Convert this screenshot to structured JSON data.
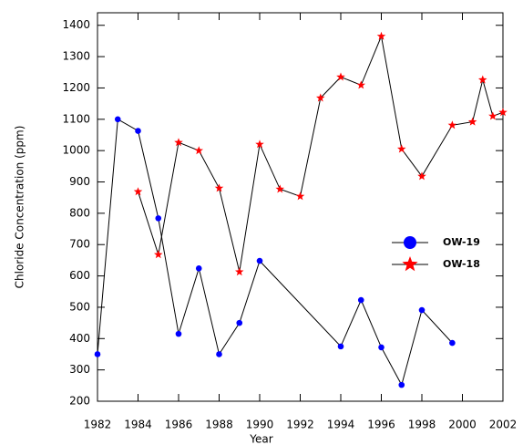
{
  "chart_data": {
    "type": "line",
    "x_label": "Year",
    "y_label": "Chloride  Concentration  (ppm)",
    "xlim": [
      1982,
      2002
    ],
    "xticks": [
      1982,
      1984,
      1986,
      1988,
      1990,
      1992,
      1994,
      1996,
      1998,
      2000,
      2002
    ],
    "ylim": [
      200,
      1440
    ],
    "yticks": [
      200,
      300,
      400,
      500,
      600,
      700,
      800,
      900,
      1000,
      1100,
      1200,
      1300,
      1400
    ],
    "legend_position": "right",
    "series": [
      {
        "name": "OW-19",
        "color": "#0000ff",
        "marker": "circle",
        "x": [
          1982,
          1983,
          1984,
          1985,
          1986,
          1987,
          1988,
          1989,
          1990,
          1994,
          1995,
          1996,
          1997,
          1998,
          1999.5
        ],
        "values": [
          350,
          1100,
          1063,
          784,
          415,
          624,
          350,
          450,
          648,
          375,
          523,
          372,
          252,
          491,
          386
        ]
      },
      {
        "name": "OW-18",
        "color": "#ff0000",
        "marker": "star",
        "x": [
          1984,
          1985,
          1986,
          1987,
          1988,
          1989,
          1990,
          1991,
          1992,
          1993,
          1994,
          1995,
          1996,
          1997,
          1998,
          1999.5,
          2000.5,
          2001,
          2001.5,
          2002
        ],
        "values": [
          869,
          668,
          1026,
          1000,
          880,
          613,
          1020,
          877,
          854,
          1168,
          1235,
          1209,
          1365,
          1005,
          918,
          1081,
          1092,
          1226,
          1110,
          1122
        ]
      }
    ]
  }
}
